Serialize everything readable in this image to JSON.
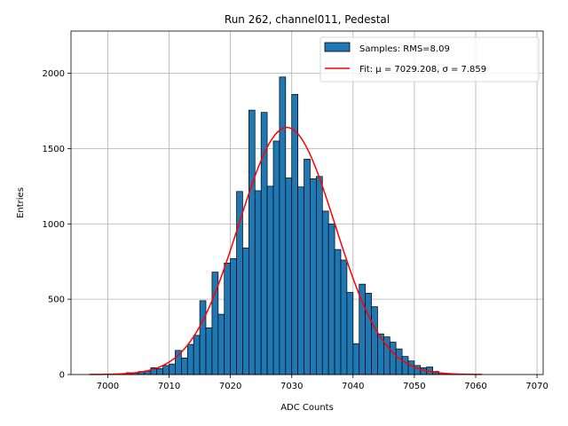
{
  "chart_data": {
    "type": "bar",
    "title": "Run 262, channel011, Pedestal",
    "xlabel": "ADC Counts",
    "ylabel": "Entries",
    "xlim": [
      6994,
      7071
    ],
    "ylim": [
      0,
      2280
    ],
    "x_ticks": [
      7000,
      7010,
      7020,
      7030,
      7040,
      7050,
      7060,
      7070
    ],
    "y_ticks": [
      0,
      500,
      1000,
      1500,
      2000
    ],
    "grid": true,
    "legend_position": "top-right",
    "bar_color": "#1f77b4",
    "bar_edge_color": "#000000",
    "fit_color": "#ff0000",
    "histogram": {
      "name": "Samples: RMS=8.09",
      "bin_width": 1,
      "bin_starts": [
        7001,
        7002,
        7003,
        7004,
        7005,
        7006,
        7007,
        7008,
        7009,
        7010,
        7011,
        7012,
        7013,
        7014,
        7015,
        7016,
        7017,
        7018,
        7019,
        7020,
        7021,
        7022,
        7023,
        7024,
        7025,
        7026,
        7027,
        7028,
        7029,
        7030,
        7031,
        7032,
        7033,
        7034,
        7035,
        7036,
        7037,
        7038,
        7039,
        7040,
        7041,
        7042,
        7043,
        7044,
        7045,
        7046,
        7047,
        7048,
        7049,
        7050,
        7051,
        7052,
        7053,
        7054,
        7055,
        7056,
        7057,
        7058,
        7059,
        7060
      ],
      "counts": [
        3,
        5,
        12,
        10,
        20,
        25,
        45,
        40,
        60,
        70,
        160,
        110,
        200,
        260,
        490,
        310,
        680,
        400,
        740,
        770,
        1215,
        840,
        1755,
        1220,
        1740,
        1250,
        1550,
        1975,
        1305,
        1860,
        1245,
        1430,
        1300,
        1315,
        1085,
        1000,
        830,
        760,
        545,
        205,
        600,
        540,
        450,
        270,
        250,
        215,
        170,
        120,
        90,
        60,
        45,
        50,
        20,
        10,
        6,
        4,
        2,
        1,
        0,
        0
      ]
    },
    "fit": {
      "name": "Fit: μ = 7029.208, σ = 7.859",
      "mu": 7029.208,
      "sigma": 7.859,
      "amplitude": 1640,
      "x_range": [
        6997,
        7061
      ]
    }
  }
}
